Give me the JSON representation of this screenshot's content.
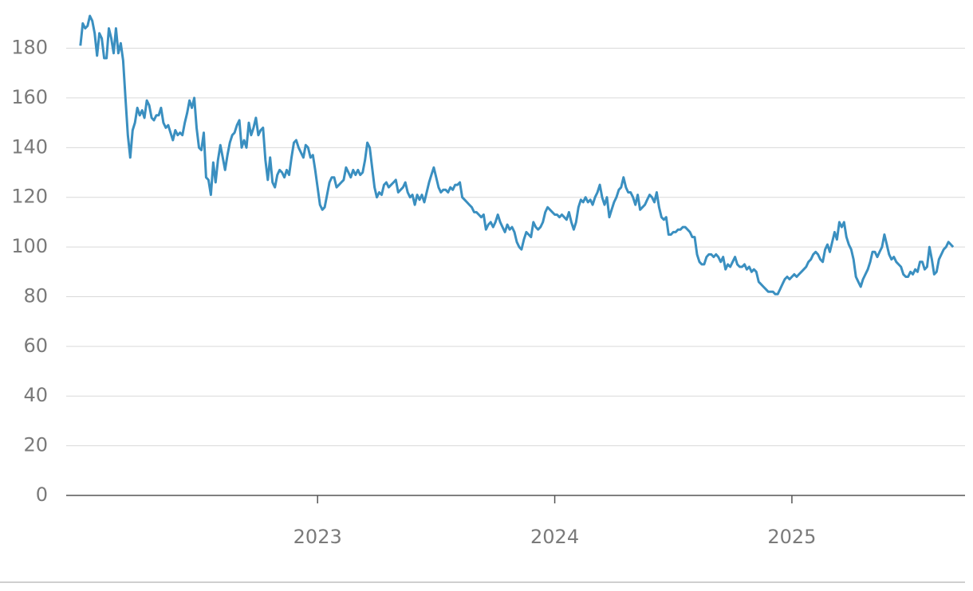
{
  "chart_data": {
    "type": "line",
    "x": [
      2022,
      2022.01,
      2022.02,
      2022.03,
      2022.04,
      2022.05,
      2022.06,
      2022.07,
      2022.08,
      2022.09,
      2022.1,
      2022.11,
      2022.12,
      2022.13,
      2022.14,
      2022.15,
      2022.16,
      2022.17,
      2022.18,
      2022.19,
      2022.2,
      2022.21,
      2022.22,
      2022.23,
      2022.24,
      2022.25,
      2022.26,
      2022.27,
      2022.28,
      2022.29,
      2022.3,
      2022.31,
      2022.32,
      2022.33,
      2022.34,
      2022.35,
      2022.36,
      2022.37,
      2022.38,
      2022.39,
      2022.4,
      2022.41,
      2022.42,
      2022.43,
      2022.44,
      2022.45,
      2022.46,
      2022.47,
      2022.48,
      2022.49,
      2022.5,
      2022.51,
      2022.52,
      2022.53,
      2022.54,
      2022.55,
      2022.56,
      2022.57,
      2022.58,
      2022.59,
      2022.6,
      2022.61,
      2022.62,
      2022.63,
      2022.64,
      2022.65,
      2022.66,
      2022.67,
      2022.68,
      2022.69,
      2022.7,
      2022.71,
      2022.72,
      2022.73,
      2022.74,
      2022.75,
      2022.76,
      2022.77,
      2022.78,
      2022.79,
      2022.8,
      2022.81,
      2022.82,
      2022.83,
      2022.84,
      2022.85,
      2022.86,
      2022.87,
      2022.88,
      2022.89,
      2022.9,
      2022.91,
      2022.92,
      2022.93,
      2022.94,
      2022.95,
      2022.96,
      2022.97,
      2022.98,
      2022.99,
      2023,
      2023.01,
      2023.02,
      2023.03,
      2023.04,
      2023.05,
      2023.06,
      2023.07,
      2023.08,
      2023.09,
      2023.1,
      2023.11,
      2023.12,
      2023.13,
      2023.14,
      2023.15,
      2023.16,
      2023.17,
      2023.18,
      2023.19,
      2023.2,
      2023.21,
      2023.22,
      2023.23,
      2023.24,
      2023.25,
      2023.26,
      2023.27,
      2023.28,
      2023.29,
      2023.3,
      2023.31,
      2023.32,
      2023.33,
      2023.34,
      2023.35,
      2023.36,
      2023.37,
      2023.38,
      2023.39,
      2023.4,
      2023.41,
      2023.42,
      2023.43,
      2023.44,
      2023.45,
      2023.46,
      2023.47,
      2023.48,
      2023.49,
      2023.5,
      2023.51,
      2023.52,
      2023.53,
      2023.54,
      2023.55,
      2023.56,
      2023.57,
      2023.58,
      2023.59,
      2023.6,
      2023.61,
      2023.62,
      2023.63,
      2023.64,
      2023.65,
      2023.66,
      2023.67,
      2023.68,
      2023.69,
      2023.7,
      2023.71,
      2023.72,
      2023.73,
      2023.74,
      2023.75,
      2023.76,
      2023.77,
      2023.78,
      2023.79,
      2023.8,
      2023.81,
      2023.82,
      2023.83,
      2023.84,
      2023.85,
      2023.86,
      2023.87,
      2023.88,
      2023.89,
      2023.9,
      2023.91,
      2023.92,
      2023.93,
      2023.94,
      2023.95,
      2023.96,
      2023.97,
      2023.98,
      2023.99,
      2024,
      2024.01,
      2024.02,
      2024.03,
      2024.04,
      2024.05,
      2024.06,
      2024.07,
      2024.08,
      2024.09,
      2024.1,
      2024.11,
      2024.12,
      2024.13,
      2024.14,
      2024.15,
      2024.16,
      2024.17,
      2024.18,
      2024.19,
      2024.2,
      2024.21,
      2024.22,
      2024.23,
      2024.24,
      2024.25,
      2024.26,
      2024.27,
      2024.28,
      2024.29,
      2024.3,
      2024.31,
      2024.32,
      2024.33,
      2024.34,
      2024.35,
      2024.36,
      2024.37,
      2024.38,
      2024.39,
      2024.4,
      2024.41,
      2024.42,
      2024.43,
      2024.44,
      2024.45,
      2024.46,
      2024.47,
      2024.48,
      2024.49,
      2024.5,
      2024.51,
      2024.52,
      2024.53,
      2024.54,
      2024.55,
      2024.56,
      2024.57,
      2024.58,
      2024.59,
      2024.6,
      2024.61,
      2024.62,
      2024.63,
      2024.64,
      2024.65,
      2024.66,
      2024.67,
      2024.68,
      2024.69,
      2024.7,
      2024.71,
      2024.72,
      2024.73,
      2024.74,
      2024.75,
      2024.76,
      2024.77,
      2024.78,
      2024.79,
      2024.8,
      2024.81,
      2024.82,
      2024.83,
      2024.84,
      2024.85,
      2024.86,
      2024.87,
      2024.88,
      2024.89,
      2024.9,
      2024.91,
      2024.92,
      2024.93,
      2024.94,
      2024.95,
      2024.96,
      2024.97,
      2024.98,
      2024.99,
      2025,
      2025.01,
      2025.02,
      2025.03,
      2025.04,
      2025.05,
      2025.06,
      2025.07,
      2025.08,
      2025.09,
      2025.1,
      2025.11,
      2025.12,
      2025.13,
      2025.14,
      2025.15,
      2025.16,
      2025.17,
      2025.18,
      2025.19,
      2025.2,
      2025.21,
      2025.22,
      2025.23,
      2025.24,
      2025.25,
      2025.26,
      2025.27,
      2025.28,
      2025.29,
      2025.3,
      2025.31,
      2025.32,
      2025.33,
      2025.34,
      2025.35,
      2025.36,
      2025.37,
      2025.38,
      2025.39,
      2025.4,
      2025.41,
      2025.42,
      2025.43,
      2025.44,
      2025.45,
      2025.46,
      2025.47,
      2025.48,
      2025.49,
      2025.5,
      2025.51,
      2025.52,
      2025.53,
      2025.54,
      2025.55,
      2025.56,
      2025.57,
      2025.58,
      2025.59,
      2025.6,
      2025.61,
      2025.62,
      2025.63,
      2025.64,
      2025.65,
      2025.66,
      2025.67,
      2025.68
    ],
    "series": [
      {
        "color": "#3a8fc0",
        "values": [
          181,
          190,
          188,
          189,
          193,
          191,
          186,
          177,
          186,
          184,
          176,
          176,
          188,
          184,
          178,
          188,
          178,
          182,
          175,
          160,
          145,
          136,
          147,
          150,
          156,
          153,
          155,
          152,
          159,
          157,
          152,
          151,
          153,
          153,
          156,
          150,
          148,
          149,
          146,
          143,
          147,
          145,
          146,
          145,
          150,
          154,
          159,
          156,
          160,
          148,
          140,
          139,
          146,
          128,
          127,
          121,
          134,
          126,
          135,
          141,
          136,
          131,
          137,
          142,
          145,
          146,
          149,
          151,
          140,
          143,
          140,
          150,
          145,
          148,
          152,
          145,
          147,
          148,
          135,
          127,
          136,
          126,
          124,
          129,
          131,
          130,
          128,
          131,
          129,
          136,
          142,
          143,
          140,
          138,
          136,
          141,
          140,
          136,
          137,
          131,
          124,
          117,
          115,
          116,
          121,
          126,
          128,
          128,
          124,
          125,
          126,
          127,
          132,
          130,
          128,
          131,
          129,
          131,
          129,
          130,
          135,
          142,
          140,
          132,
          124,
          120,
          122,
          121,
          125,
          126,
          124,
          125,
          126,
          127,
          122,
          123,
          124,
          126,
          122,
          120,
          121,
          117,
          121,
          119,
          121,
          118,
          122,
          126,
          129,
          132,
          128,
          124,
          122,
          123,
          123,
          122,
          124,
          123,
          125,
          125,
          126,
          120,
          119,
          118,
          117,
          116,
          114,
          114,
          113,
          112,
          113,
          107,
          109,
          110,
          108,
          110,
          113,
          110,
          108,
          106,
          109,
          107,
          108,
          106,
          102,
          100,
          99,
          103,
          106,
          105,
          104,
          110,
          108,
          107,
          108,
          110,
          114,
          116,
          115,
          114,
          113,
          113,
          112,
          113,
          112,
          111,
          114,
          110,
          107,
          110,
          116,
          119,
          118,
          120,
          118,
          119,
          117,
          120,
          122,
          125,
          120,
          117,
          120,
          112,
          115,
          118,
          120,
          123,
          124,
          128,
          124,
          122,
          122,
          120,
          117,
          121,
          115,
          116,
          117,
          119,
          121,
          120,
          118,
          122,
          116,
          112,
          111,
          112,
          105,
          105,
          106,
          106,
          107,
          107,
          108,
          108,
          107,
          106,
          104,
          104,
          97,
          94,
          93,
          93,
          96,
          97,
          97,
          96,
          97,
          96,
          94,
          96,
          91,
          93,
          92,
          94,
          96,
          93,
          92,
          92,
          93,
          91,
          92,
          90,
          91,
          90,
          86,
          85,
          84,
          83,
          82,
          82,
          82,
          81,
          81,
          83,
          85,
          87,
          88,
          87,
          88,
          89,
          88,
          89,
          90,
          91,
          92,
          94,
          95,
          97,
          98,
          97,
          95,
          94,
          99,
          101,
          98,
          102,
          106,
          103,
          110,
          108,
          110,
          104,
          101,
          99,
          95,
          88,
          86,
          84,
          87,
          89,
          91,
          94,
          98,
          98,
          96,
          98,
          100,
          105,
          101,
          97,
          95,
          96,
          94,
          93,
          92,
          89,
          88,
          88,
          90,
          89,
          91,
          90,
          94,
          94,
          91,
          92,
          100,
          95,
          89,
          90,
          95,
          97,
          99,
          100,
          102,
          101,
          100
        ]
      }
    ],
    "xlim": [
      2021.94,
      2025.73
    ],
    "xticks": [
      2023,
      2024,
      2025
    ],
    "ylim": [
      0,
      193
    ],
    "yticks": [
      0,
      20,
      40,
      60,
      80,
      100,
      120,
      140,
      160,
      180
    ],
    "grid": true
  }
}
